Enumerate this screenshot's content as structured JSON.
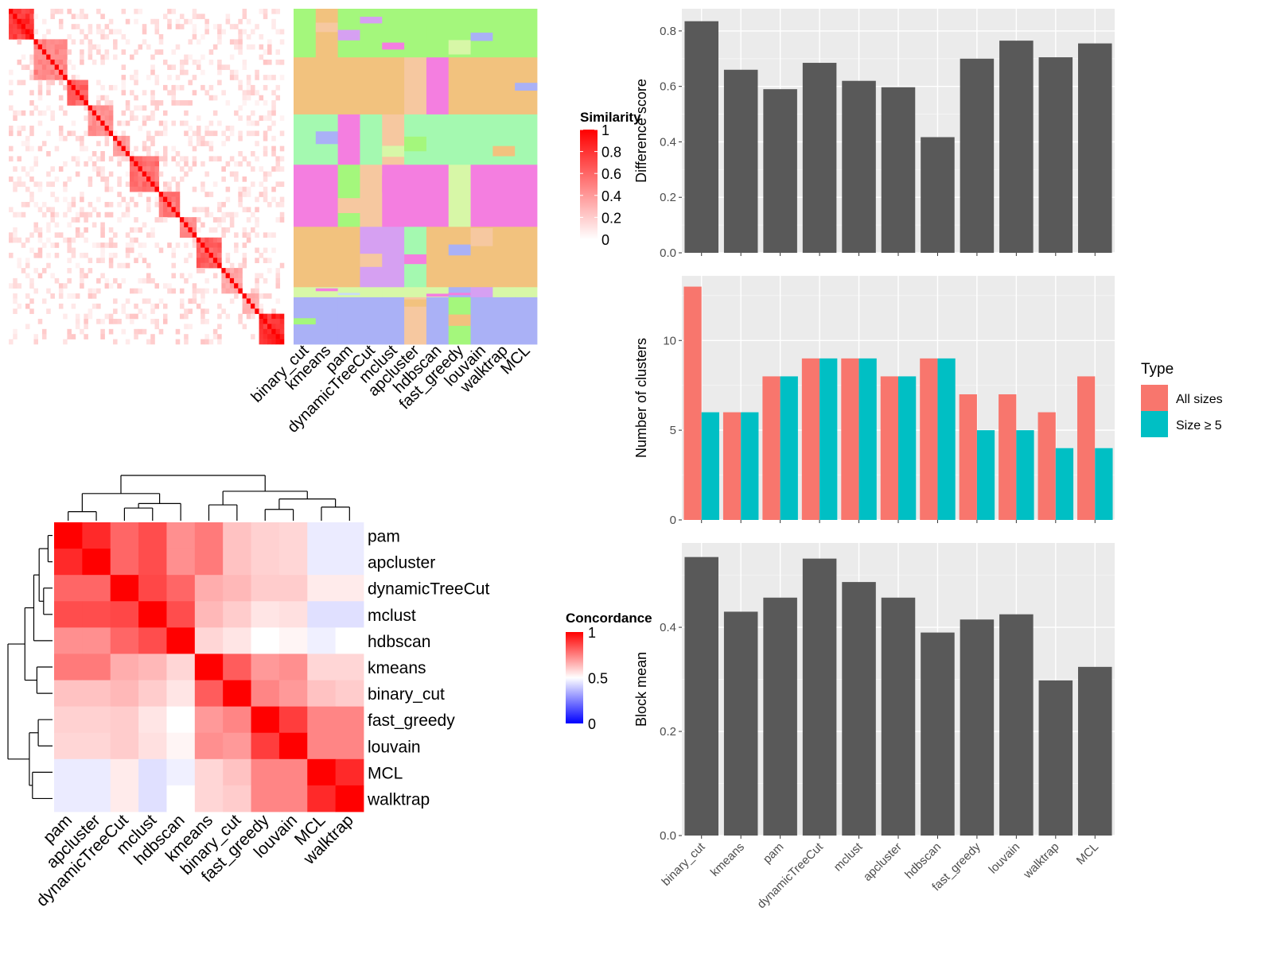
{
  "chart_data": [
    {
      "type": "heatmap",
      "panel": "similarity-heatmap",
      "title": "",
      "legend": {
        "title": "Similarity",
        "ticks": [
          "0",
          "0.2",
          "0.4",
          "0.6",
          "0.8",
          "1"
        ],
        "low_color": "#ffffff",
        "high_color": "#ff0000"
      },
      "methods": [
        "binary_cut",
        "kmeans",
        "pam",
        "dynamicTreeCut",
        "mclust",
        "apcluster",
        "hdbscan",
        "fast_greedy",
        "louvain",
        "walktrap",
        "MCL"
      ],
      "blocks": [
        {
          "size": 6,
          "strength": 0.9
        },
        {
          "size": 8,
          "strength": 0.55
        },
        {
          "size": 5,
          "strength": 0.7
        },
        {
          "size": 6,
          "strength": 0.5
        },
        {
          "size": 4,
          "strength": 0.45
        },
        {
          "size": 7,
          "strength": 0.65
        },
        {
          "size": 5,
          "strength": 0.6
        },
        {
          "size": 4,
          "strength": 0.5
        },
        {
          "size": 6,
          "strength": 0.7
        },
        {
          "size": 5,
          "strength": 0.4
        },
        {
          "size": 4,
          "strength": 0.35
        },
        {
          "size": 6,
          "strength": 0.95
        }
      ],
      "cluster_bands": [
        {
          "fraction": 0.145,
          "base": "#a4f77c"
        },
        {
          "fraction": 0.17,
          "base": "#f2c27e"
        },
        {
          "fraction": 0.15,
          "base": "#a4f9b0"
        },
        {
          "fraction": 0.185,
          "base": "#f47ee0"
        },
        {
          "fraction": 0.18,
          "base": "#f2c27e"
        },
        {
          "fraction": 0.03,
          "base": "#d7f7a7"
        },
        {
          "fraction": 0.14,
          "base": "#aab1f6"
        }
      ],
      "palette": [
        "#a4f77c",
        "#f2c27e",
        "#a4f9b0",
        "#f47ee0",
        "#d6a0f2",
        "#c8dcf6",
        "#aab1f6",
        "#d7f7a7",
        "#f6c8a0"
      ]
    },
    {
      "type": "heatmap",
      "panel": "concordance-heatmap",
      "title": "",
      "legend": {
        "title": "Concordance",
        "ticks": [
          "0",
          "0.5",
          "1"
        ],
        "low_color": "#0000ff",
        "mid_color": "#ffffff",
        "high_color": "#ff0000"
      },
      "rows": [
        "pam",
        "apcluster",
        "dynamicTreeCut",
        "mclust",
        "hdbscan",
        "kmeans",
        "binary_cut",
        "fast_greedy",
        "louvain",
        "MCL",
        "walktrap"
      ],
      "columns": [
        "pam",
        "apcluster",
        "dynamicTreeCut",
        "mclust",
        "hdbscan",
        "kmeans",
        "binary_cut",
        "fast_greedy",
        "louvain",
        "MCL",
        "walktrap"
      ],
      "values": [
        [
          1.0,
          0.92,
          0.8,
          0.85,
          0.72,
          0.76,
          0.62,
          0.59,
          0.58,
          0.46,
          0.46
        ],
        [
          0.92,
          1.0,
          0.8,
          0.85,
          0.72,
          0.76,
          0.62,
          0.59,
          0.58,
          0.46,
          0.46
        ],
        [
          0.8,
          0.8,
          1.0,
          0.86,
          0.8,
          0.66,
          0.64,
          0.6,
          0.6,
          0.54,
          0.54
        ],
        [
          0.85,
          0.85,
          0.86,
          1.0,
          0.85,
          0.64,
          0.6,
          0.55,
          0.56,
          0.44,
          0.44
        ],
        [
          0.72,
          0.72,
          0.8,
          0.85,
          1.0,
          0.58,
          0.55,
          0.5,
          0.52,
          0.47,
          0.5
        ],
        [
          0.76,
          0.76,
          0.66,
          0.64,
          0.58,
          1.0,
          0.82,
          0.7,
          0.72,
          0.58,
          0.58
        ],
        [
          0.62,
          0.62,
          0.64,
          0.6,
          0.55,
          0.82,
          1.0,
          0.74,
          0.7,
          0.62,
          0.6
        ],
        [
          0.59,
          0.59,
          0.6,
          0.55,
          0.5,
          0.7,
          0.74,
          1.0,
          0.88,
          0.74,
          0.74
        ],
        [
          0.58,
          0.58,
          0.6,
          0.56,
          0.52,
          0.72,
          0.7,
          0.88,
          1.0,
          0.74,
          0.74
        ],
        [
          0.46,
          0.46,
          0.54,
          0.44,
          0.47,
          0.58,
          0.62,
          0.74,
          0.74,
          1.0,
          0.92
        ],
        [
          0.46,
          0.46,
          0.54,
          0.44,
          0.5,
          0.58,
          0.6,
          0.74,
          0.74,
          0.92,
          1.0
        ]
      ]
    },
    {
      "type": "bar",
      "panel": "difference-score",
      "title": "",
      "xlabel": "",
      "ylabel": "Difference score",
      "categories": [
        "binary_cut",
        "kmeans",
        "pam",
        "dynamicTreeCut",
        "mclust",
        "apcluster",
        "hdbscan",
        "fast_greedy",
        "louvain",
        "walktrap",
        "MCL"
      ],
      "values": [
        0.835,
        0.66,
        0.59,
        0.685,
        0.62,
        0.597,
        0.417,
        0.7,
        0.765,
        0.705,
        0.755
      ],
      "ylim": [
        0,
        0.88
      ],
      "yticks": [
        "0.0",
        "0.2",
        "0.4",
        "0.6",
        "0.8"
      ],
      "bar_color": "#595959",
      "panel_bg": "#ebebeb"
    },
    {
      "type": "bar",
      "panel": "number-of-clusters",
      "title": "",
      "xlabel": "",
      "ylabel": "Number of clusters",
      "categories": [
        "binary_cut",
        "kmeans",
        "pam",
        "dynamicTreeCut",
        "mclust",
        "apcluster",
        "hdbscan",
        "fast_greedy",
        "louvain",
        "walktrap",
        "MCL"
      ],
      "series": [
        {
          "name": "All sizes",
          "color": "#f8766d",
          "values": [
            13,
            6,
            8,
            9,
            9,
            8,
            9,
            7,
            7,
            6,
            8
          ]
        },
        {
          "name": "Size ≥ 5",
          "color": "#00bfc4",
          "values": [
            6,
            6,
            8,
            9,
            9,
            8,
            9,
            5,
            5,
            4,
            4
          ]
        }
      ],
      "ylim": [
        0,
        13.6
      ],
      "yticks": [
        "0",
        "5",
        "10"
      ],
      "legend": {
        "title": "Type",
        "placement": "right"
      },
      "panel_bg": "#ebebeb"
    },
    {
      "type": "bar",
      "panel": "block-mean",
      "title": "",
      "xlabel": "",
      "ylabel": "Block mean",
      "categories": [
        "binary_cut",
        "kmeans",
        "pam",
        "dynamicTreeCut",
        "mclust",
        "apcluster",
        "hdbscan",
        "fast_greedy",
        "louvain",
        "walktrap",
        "MCL"
      ],
      "values": [
        0.535,
        0.43,
        0.457,
        0.532,
        0.487,
        0.457,
        0.39,
        0.415,
        0.425,
        0.298,
        0.324
      ],
      "ylim": [
        0,
        0.562
      ],
      "yticks": [
        "0.0",
        "0.2",
        "0.4"
      ],
      "bar_color": "#595959",
      "panel_bg": "#ebebeb"
    }
  ]
}
